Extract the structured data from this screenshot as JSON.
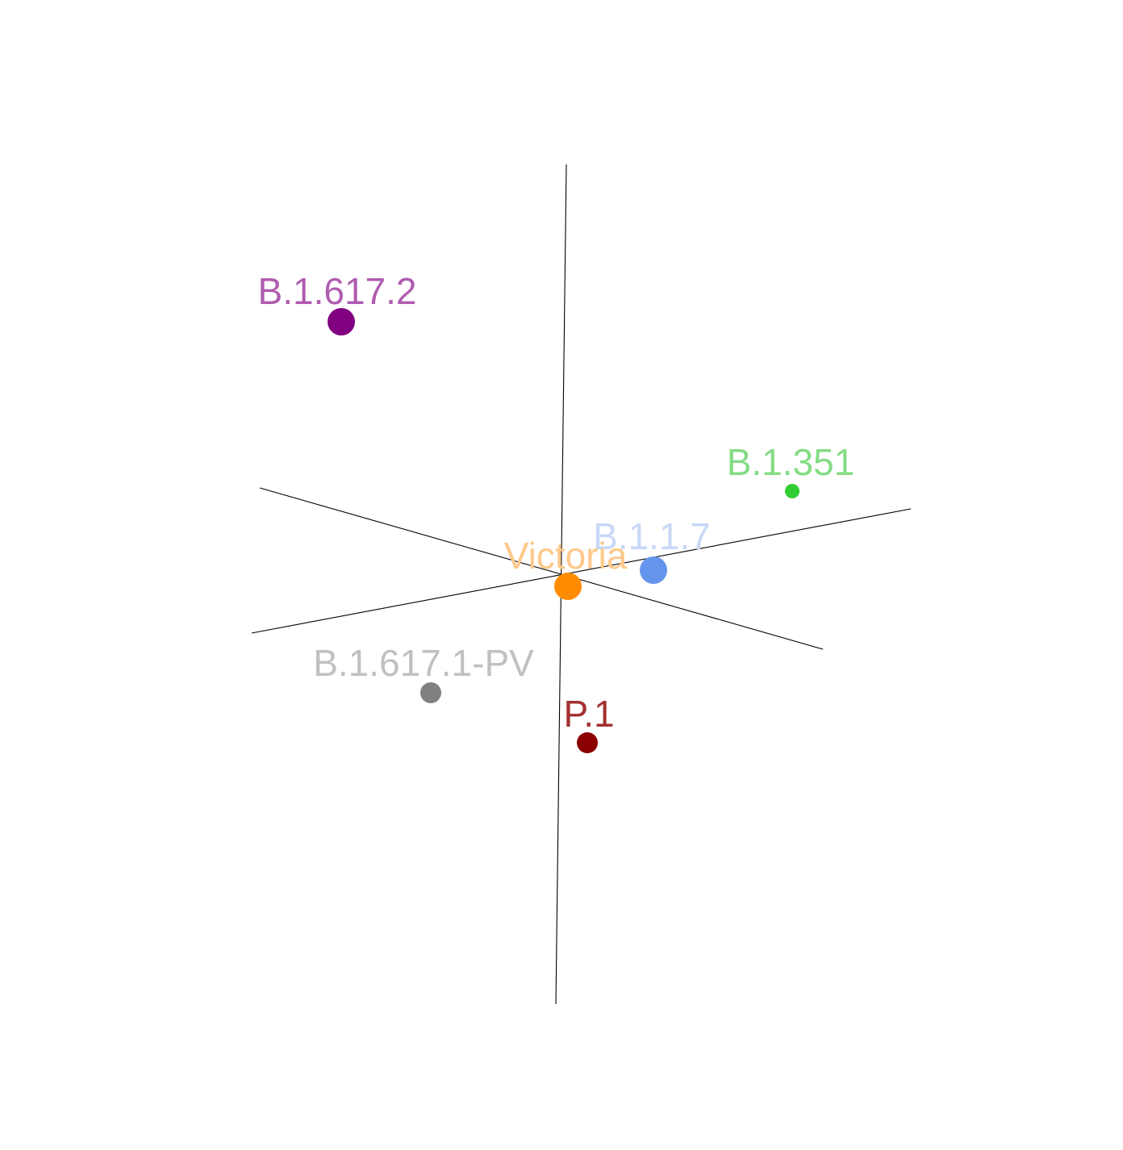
{
  "chart_data": {
    "type": "scatter",
    "title": "",
    "xlabel": "",
    "ylabel": "",
    "zlabel": "",
    "grid": false,
    "legend": "none",
    "projection": "3d-axes",
    "points": [
      {
        "name": "B.1.617.2",
        "marker_color": "#800080",
        "label_color": "#b05cb0",
        "size": "large"
      },
      {
        "name": "B.1.351",
        "marker_color": "#32cd32",
        "label_color": "#84dc84",
        "size": "small"
      },
      {
        "name": "B.1.1.7",
        "marker_color": "#6495ed",
        "label_color": "#c8d8f6",
        "size": "large"
      },
      {
        "name": "Victoria",
        "marker_color": "#ff8c00",
        "label_color": "#ffc88a",
        "size": "large"
      },
      {
        "name": "B.1.617.1-PV",
        "marker_color": "#808080",
        "label_color": "#c0c0c0",
        "size": "medium"
      },
      {
        "name": "P.1",
        "marker_color": "#8b0000",
        "label_color": "#a33030",
        "size": "medium"
      }
    ]
  }
}
